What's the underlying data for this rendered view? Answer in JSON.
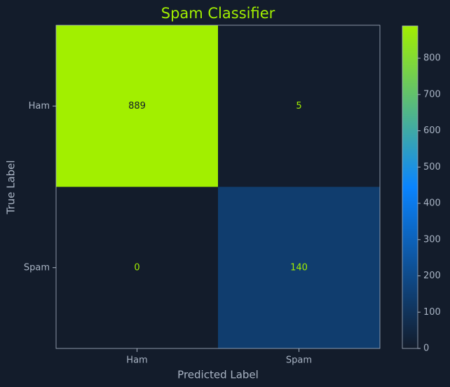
{
  "chart_data": {
    "type": "heatmap",
    "title": "Spam Classifier",
    "xlabel": "Predicted Label",
    "ylabel": "True Label",
    "rows": [
      "Ham",
      "Spam"
    ],
    "columns": [
      "Ham",
      "Spam"
    ],
    "values": [
      [
        889,
        5
      ],
      [
        0,
        140
      ]
    ],
    "clim": [
      0,
      889
    ],
    "cticks": [
      0,
      100,
      200,
      300,
      400,
      500,
      600,
      700,
      800
    ],
    "colormap": [
      "#131c2b",
      "#0a84ff",
      "#a2ef00"
    ],
    "title_color": "#a2ef00"
  }
}
